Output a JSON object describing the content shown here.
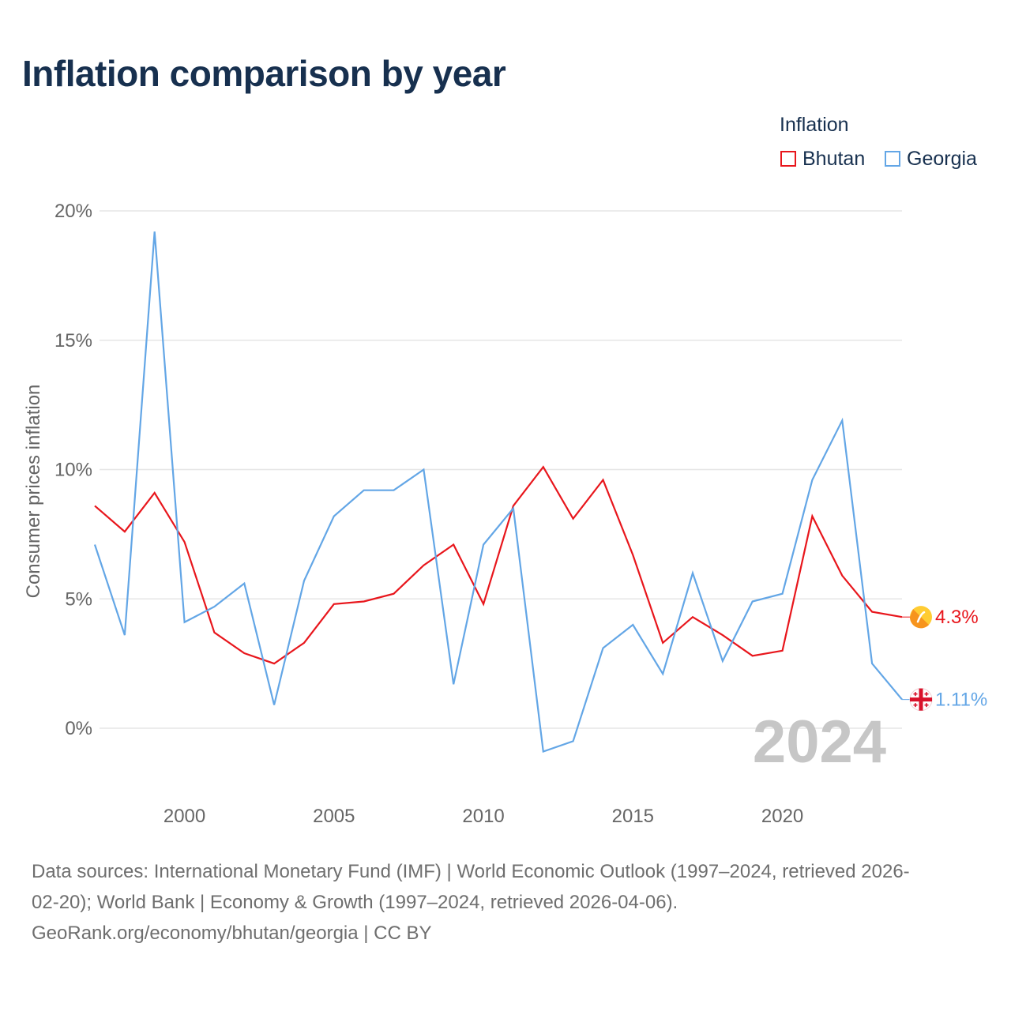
{
  "title": "Inflation comparison by year",
  "legend": {
    "title": "Inflation",
    "items": [
      {
        "label": "Bhutan",
        "color": "#e8161c"
      },
      {
        "label": "Georgia",
        "color": "#63a6e6"
      }
    ]
  },
  "footer": {
    "line1": "Data sources: International Monetary Fund (IMF) | World Economic Outlook (1997–2024, retrieved 2026-",
    "line2": "02-20); World Bank | Economy & Growth (1997–2024, retrieved 2026-04-06).",
    "line3": "GeoRank.org/economy/bhutan/georgia | CC BY"
  },
  "chart_data": {
    "type": "line",
    "title": "Inflation comparison by year",
    "xlabel": "",
    "ylabel": "Consumer prices inflation",
    "xlim": [
      1997,
      2024
    ],
    "ylim": [
      -2.6,
      20
    ],
    "x_ticks": [
      2000,
      2005,
      2010,
      2015,
      2020
    ],
    "x_tick_labels": [
      "2000",
      "2005",
      "2010",
      "2015",
      "2020"
    ],
    "y_ticks": [
      0,
      5,
      10,
      15,
      20
    ],
    "y_tick_labels": [
      "0%",
      "5%",
      "10%",
      "15%",
      "20%"
    ],
    "grid": true,
    "year_watermark": "2024",
    "x": [
      1997,
      1998,
      1999,
      2000,
      2001,
      2002,
      2003,
      2004,
      2005,
      2006,
      2007,
      2008,
      2009,
      2010,
      2011,
      2012,
      2013,
      2014,
      2015,
      2016,
      2017,
      2018,
      2019,
      2020,
      2021,
      2022,
      2023,
      2024
    ],
    "series": [
      {
        "name": "Bhutan",
        "color": "#e8161c",
        "values": [
          8.6,
          7.6,
          9.1,
          7.2,
          3.7,
          2.9,
          2.5,
          3.3,
          4.8,
          4.9,
          5.2,
          6.3,
          7.1,
          4.8,
          8.6,
          10.1,
          8.1,
          9.6,
          6.7,
          3.3,
          4.3,
          3.6,
          2.8,
          3.0,
          8.2,
          5.9,
          4.5,
          4.3
        ],
        "end_label": "4.3%"
      },
      {
        "name": "Georgia",
        "color": "#63a6e6",
        "values": [
          7.1,
          3.6,
          19.2,
          4.1,
          4.7,
          5.6,
          0.9,
          5.7,
          8.2,
          9.2,
          9.2,
          10.0,
          1.7,
          7.1,
          8.5,
          -0.9,
          -0.5,
          3.1,
          4.0,
          2.1,
          6.0,
          2.6,
          4.9,
          5.2,
          9.6,
          11.9,
          2.5,
          1.11
        ],
        "end_label": "1.11%"
      }
    ]
  }
}
